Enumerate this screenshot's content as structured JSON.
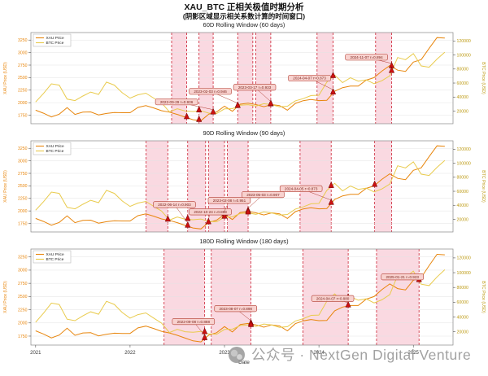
{
  "figure": {
    "title": "XAU_BTC 正相关极值时期分析",
    "subtitle": "(阴影区域显示相关系数计算的时间窗口)",
    "xlabel": "Date",
    "watermark_text": "公众号 · NextGen Digital Venture"
  },
  "legend": {
    "items": [
      "XAU Price",
      "BTC Price"
    ]
  },
  "colors": {
    "xau_line": "#e8860d",
    "btc_line": "#e9cb4d",
    "left_tick": "#e8860d",
    "right_tick": "#bd9a12",
    "band_fill": "rgba(236,98,128,0.24)",
    "band_edge": "#cc2233",
    "marker_fill": "#cc1111",
    "marker_edge": "#660000",
    "ann_fill": "#f8d2cf",
    "ann_edge": "#b03a2e",
    "ann_text": "#7b241c",
    "grid": "#e3e3e3",
    "spine": "#888888"
  },
  "chart_data": {
    "type": "line",
    "x_start": 2021.0,
    "x_step": 0.0833333,
    "x_range": [
      2020.95,
      2025.42
    ],
    "x_ticks": [
      2021,
      2022,
      2023,
      2024,
      2025
    ],
    "left_axis": {
      "label": "XAU Price (USD)",
      "range": [
        1580,
        3400
      ],
      "ticks": [
        1750,
        2000,
        2250,
        2500,
        2750,
        3000,
        3250
      ]
    },
    "right_axis": {
      "label": "BTC Price (USD)",
      "range": [
        2000,
        132000
      ],
      "ticks": [
        20000,
        40000,
        60000,
        80000,
        100000,
        120000
      ]
    },
    "series": [
      {
        "name": "XAU Price",
        "axis": "left",
        "values": [
          1850,
          1790,
          1715,
          1770,
          1900,
          1765,
          1810,
          1815,
          1755,
          1785,
          1805,
          1800,
          1800,
          1905,
          1940,
          1895,
          1840,
          1810,
          1765,
          1712,
          1660,
          1640,
          1770,
          1815,
          1930,
          1828,
          1970,
          1990,
          1962,
          1920,
          1962,
          1942,
          1850,
          1985,
          2040,
          2065,
          2042,
          2048,
          2230,
          2300,
          2330,
          2330,
          2450,
          2500,
          2630,
          2740,
          2650,
          2625,
          2810,
          2860,
          3085,
          3300,
          3290
        ]
      },
      {
        "name": "BTC Price",
        "axis": "right",
        "values": [
          33000,
          45200,
          58900,
          57000,
          37000,
          35000,
          41500,
          47100,
          43800,
          61300,
          57000,
          46200,
          38500,
          43200,
          45500,
          38600,
          31800,
          19000,
          23300,
          20050,
          19400,
          20500,
          17100,
          16550,
          23100,
          23500,
          28400,
          29200,
          27200,
          30500,
          29200,
          26000,
          26900,
          34600,
          37700,
          42200,
          42600,
          61200,
          71300,
          60600,
          67500,
          62700,
          64600,
          59100,
          63300,
          70200,
          96400,
          93400,
          102100,
          84400,
          82500,
          94200,
          104000
        ]
      }
    ],
    "charts": [
      {
        "title": "60D Rolling Window (60 days)",
        "bands": [
          [
            2022.44,
            2022.6
          ],
          [
            2022.73,
            2022.88
          ],
          [
            2023.14,
            2023.3
          ],
          [
            2023.33,
            2023.49
          ],
          [
            2023.98,
            2024.15
          ],
          [
            2024.6,
            2024.77
          ]
        ],
        "triangles": [
          {
            "x": 2022.6,
            "s": 0
          },
          {
            "x": 2022.73,
            "s": 0
          },
          {
            "x": 2022.88,
            "s": 0
          },
          {
            "x": 2023.14,
            "s": 0
          },
          {
            "x": 2023.49,
            "s": 0
          },
          {
            "x": 2024.15,
            "s": 0
          },
          {
            "x": 2024.77,
            "s": 0
          },
          {
            "x": 2022.73,
            "s": 1
          },
          {
            "x": 2023.14,
            "s": 1
          },
          {
            "x": 2023.49,
            "s": 1
          },
          {
            "x": 2024.15,
            "s": 1
          },
          {
            "x": 2024.77,
            "s": 1
          }
        ],
        "annotations": [
          {
            "label": "2022-09-29 r=0.936",
            "bx": 0.345,
            "by": 0.76,
            "tx": 2022.88,
            "ts": 0
          },
          {
            "label": "2023-02-03 r=0.946",
            "bx": 0.425,
            "by": 0.645,
            "tx": 2023.14,
            "ts": 0
          },
          {
            "label": "2023-03-17 r=0.933",
            "bx": 0.53,
            "by": 0.6,
            "tx": 2023.49,
            "ts": 0
          },
          {
            "label": "2024-04-07 r=0.873",
            "bx": 0.66,
            "by": 0.5,
            "tx": 2024.15,
            "ts": 0
          },
          {
            "label": "2024-11-07 r=0.894",
            "bx": 0.795,
            "by": 0.27,
            "tx": 2024.77,
            "ts": 0
          }
        ]
      },
      {
        "title": "90D Rolling Window (90 days)",
        "bands": [
          [
            2022.17,
            2022.4
          ],
          [
            2022.61,
            2022.8
          ],
          [
            2022.83,
            2023.0
          ],
          [
            2023.03,
            2023.25
          ],
          [
            2023.8,
            2024.13
          ],
          [
            2024.59,
            2024.77
          ]
        ],
        "triangles": [
          {
            "x": 2022.4,
            "s": 0
          },
          {
            "x": 2022.61,
            "s": 0
          },
          {
            "x": 2022.83,
            "s": 0
          },
          {
            "x": 2023.0,
            "s": 0
          },
          {
            "x": 2023.25,
            "s": 0
          },
          {
            "x": 2024.13,
            "s": 0
          },
          {
            "x": 2024.59,
            "s": 0
          },
          {
            "x": 2022.61,
            "s": 1
          },
          {
            "x": 2023.0,
            "s": 1
          },
          {
            "x": 2023.25,
            "s": 1
          },
          {
            "x": 2024.13,
            "s": 1
          }
        ],
        "annotations": [
          {
            "label": "2022-06-14 r=0.903",
            "bx": 0.34,
            "by": 0.7,
            "tx": 2022.61,
            "ts": 0
          },
          {
            "label": "2022-10-24 r=0.898",
            "bx": 0.425,
            "by": 0.78,
            "tx": 2022.83,
            "ts": 0
          },
          {
            "label": "2023-02-08 r=0.951",
            "bx": 0.47,
            "by": 0.655,
            "tx": 2023.0,
            "ts": 0
          },
          {
            "label": "2023-05-03 r=0.907",
            "bx": 0.55,
            "by": 0.59,
            "tx": 2023.25,
            "ts": 0
          },
          {
            "label": "2024-04-05 r=0.873",
            "bx": 0.64,
            "by": 0.525,
            "tx": 2024.13,
            "ts": 0
          }
        ]
      },
      {
        "title": "180D Rolling Window (180 days)",
        "bands": [
          [
            2022.36,
            2022.79
          ],
          [
            2022.86,
            2023.28
          ],
          [
            2023.83,
            2024.31
          ],
          [
            2024.61,
            2025.06
          ]
        ],
        "triangles": [
          {
            "x": 2022.79,
            "s": 0
          },
          {
            "x": 2023.28,
            "s": 0
          },
          {
            "x": 2024.31,
            "s": 0
          },
          {
            "x": 2025.06,
            "s": 0
          },
          {
            "x": 2022.79,
            "s": 1
          },
          {
            "x": 2023.28,
            "s": 1
          },
          {
            "x": 2024.31,
            "s": 1
          },
          {
            "x": 2025.06,
            "s": 1
          }
        ],
        "annotations": [
          {
            "label": "2022-09-08 r=0.888",
            "bx": 0.385,
            "by": 0.755,
            "tx": 2022.79,
            "ts": 0
          },
          {
            "label": "2023-08-07 r=0.898",
            "bx": 0.485,
            "by": 0.62,
            "tx": 2023.28,
            "ts": 0
          },
          {
            "label": "2024-04-07 r=0.880",
            "bx": 0.715,
            "by": 0.515,
            "tx": 2024.31,
            "ts": 0
          },
          {
            "label": "2025-01-21 r=0.923",
            "bx": 0.88,
            "by": 0.29,
            "tx": 2025.06,
            "ts": 0
          }
        ]
      }
    ]
  }
}
